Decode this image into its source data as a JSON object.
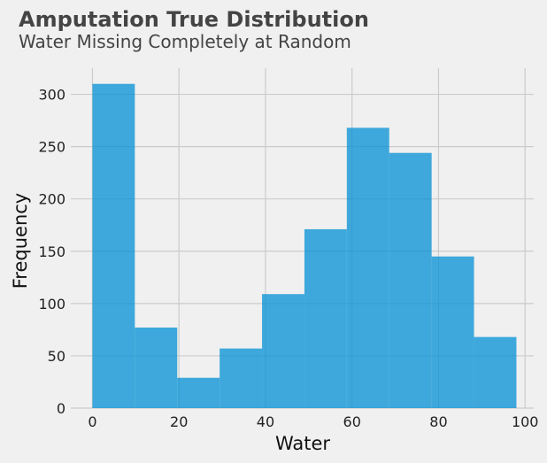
{
  "chart_data": {
    "type": "bar",
    "title": "Amputation True Distribution",
    "subtitle": "Water Missing Completely at Random",
    "xlabel": "Water",
    "ylabel": "Frequency",
    "bins": [
      {
        "start": 0,
        "end": 9.8,
        "count": 310
      },
      {
        "start": 9.8,
        "end": 19.6,
        "count": 77
      },
      {
        "start": 19.6,
        "end": 29.4,
        "count": 29
      },
      {
        "start": 29.4,
        "end": 39.2,
        "count": 57
      },
      {
        "start": 39.2,
        "end": 49.0,
        "count": 109
      },
      {
        "start": 49.0,
        "end": 58.8,
        "count": 171
      },
      {
        "start": 58.8,
        "end": 68.6,
        "count": 268
      },
      {
        "start": 68.6,
        "end": 78.4,
        "count": 244
      },
      {
        "start": 78.4,
        "end": 88.2,
        "count": 145
      },
      {
        "start": 88.2,
        "end": 98.0,
        "count": 68
      }
    ],
    "xlim": [
      -5,
      102
    ],
    "ylim": [
      0,
      325
    ],
    "xticks": [
      0,
      20,
      40,
      60,
      80,
      100
    ],
    "yticks": [
      0,
      50,
      100,
      150,
      200,
      250,
      300
    ],
    "grid": true,
    "colors": {
      "bar": "#008fd5",
      "background": "#f0f0f0",
      "grid": "#cbcbcb"
    }
  }
}
